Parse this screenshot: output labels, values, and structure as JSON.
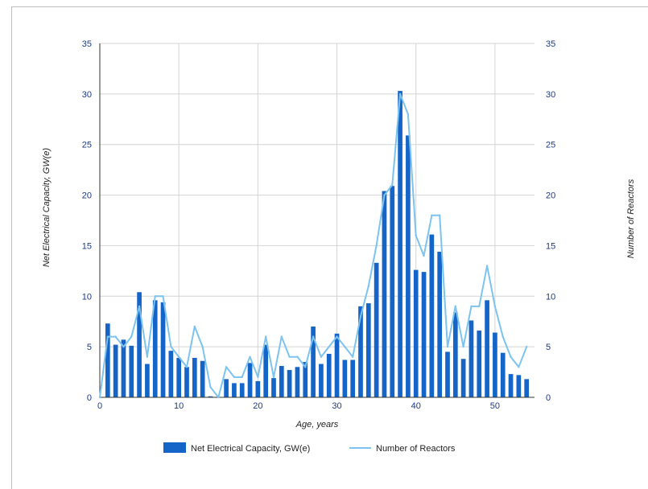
{
  "chart_data": {
    "type": "bar",
    "xlabel": "Age, years",
    "ylabel_left": "Net Electrical Capacity, GW(e)",
    "ylabel_right": "Number of Reactors",
    "ylim": [
      0,
      35
    ],
    "yticks": [
      0,
      5,
      10,
      15,
      20,
      25,
      30,
      35
    ],
    "xlim": [
      0,
      55
    ],
    "xticks": [
      0,
      10,
      20,
      30,
      40,
      50
    ],
    "grid": true,
    "legend_position": "bottom",
    "colors": {
      "bar": "#1565c8",
      "line": "#7cc4ef",
      "grid": "#d4d4d4",
      "axis": "#333333",
      "tick_text": "#1d3a8a"
    },
    "series": [
      {
        "name": "Net Electrical Capacity, GW(e)",
        "type": "bar",
        "x": [
          1,
          2,
          3,
          4,
          5,
          6,
          7,
          8,
          9,
          10,
          11,
          12,
          13,
          14,
          16,
          17,
          18,
          19,
          20,
          21,
          22,
          23,
          24,
          25,
          26,
          27,
          28,
          29,
          30,
          31,
          32,
          33,
          34,
          35,
          36,
          37,
          38,
          39,
          40,
          41,
          42,
          43,
          44,
          45,
          46,
          47,
          48,
          49,
          50,
          51,
          52,
          53,
          54
        ],
        "values": [
          7.3,
          5.2,
          5.7,
          5.1,
          10.4,
          3.3,
          9.6,
          9.4,
          4.6,
          3.9,
          3.0,
          3.9,
          3.6,
          0.1,
          1.8,
          1.4,
          1.4,
          3.4,
          1.6,
          5.2,
          1.9,
          3.1,
          2.7,
          3.0,
          3.5,
          7.0,
          3.3,
          4.3,
          6.3,
          3.7,
          3.7,
          9.0,
          9.3,
          13.3,
          20.4,
          20.9,
          30.3,
          25.9,
          12.6,
          12.4,
          16.1,
          14.4,
          4.5,
          8.4,
          3.8,
          7.6,
          6.6,
          9.6,
          6.4,
          4.4,
          2.3,
          2.2,
          1.8
        ]
      },
      {
        "name": "Number of Reactors",
        "type": "line",
        "x": [
          0,
          1,
          2,
          3,
          4,
          5,
          6,
          7,
          8,
          9,
          10,
          11,
          12,
          13,
          14,
          15,
          16,
          17,
          18,
          19,
          20,
          21,
          22,
          23,
          24,
          25,
          26,
          27,
          28,
          29,
          30,
          31,
          32,
          33,
          34,
          35,
          36,
          37,
          38,
          39,
          40,
          41,
          42,
          43,
          44,
          45,
          46,
          47,
          48,
          49,
          50,
          51,
          52,
          53,
          54
        ],
        "values": [
          0,
          6,
          6,
          5,
          6,
          9,
          4,
          10,
          10,
          5,
          4,
          3,
          7,
          5,
          1,
          0,
          3,
          2,
          2,
          4,
          2,
          6,
          2,
          6,
          4,
          4,
          3,
          6,
          4,
          5,
          6,
          5,
          4,
          8,
          11,
          15,
          20,
          21,
          30,
          28,
          16,
          14,
          18,
          18,
          5,
          9,
          5,
          9,
          9,
          13,
          9,
          6,
          4,
          3,
          5
        ]
      }
    ]
  }
}
